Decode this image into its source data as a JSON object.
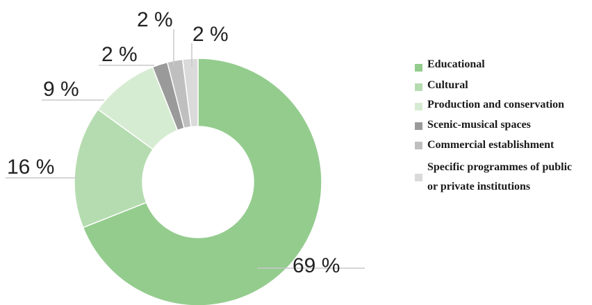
{
  "chart_data": {
    "type": "pie",
    "donut": true,
    "categories": [
      "Educational",
      "Cultural",
      "Production and conservation",
      "Scenic-musical spaces",
      "Commercial establishment",
      "Specific programmes of public or private institutions"
    ],
    "legend_lines": [
      [
        "Educational"
      ],
      [
        "Cultural"
      ],
      [
        "Production and conservation"
      ],
      [
        "Scenic-musical spaces"
      ],
      [
        "Commercial establishment"
      ],
      [
        "Specific programmes of public",
        "or private institutions"
      ]
    ],
    "values": [
      69,
      16,
      9,
      2,
      2,
      2
    ],
    "labels": [
      "69 %",
      "16 %",
      "9 %",
      "2 %",
      "2 %",
      "2 %"
    ],
    "colors": [
      "#94cc8e",
      "#b5dcb0",
      "#d6ecd2",
      "#9a9a9a",
      "#bfbfbf",
      "#dadada"
    ],
    "legend_position": "right",
    "title": "",
    "xlabel": "",
    "ylabel": ""
  }
}
